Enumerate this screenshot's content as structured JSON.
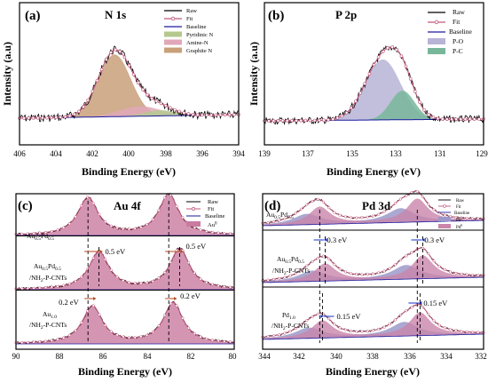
{
  "chart_data": [
    {
      "panel": "(a)",
      "title": "N 1s",
      "type": "line",
      "xlabel": "Binding Energy (eV)",
      "ylabel": "Intensity (a.u)",
      "xlim": [
        406,
        394
      ],
      "xticks": [
        406,
        404,
        402,
        400,
        398,
        396,
        394
      ],
      "legend": [
        "Raw",
        "Fit",
        "Baseline",
        "Pyridinic N",
        "Amine-N",
        "Graphite N"
      ],
      "legend_position": "top-right",
      "components": [
        {
          "name": "Graphite N",
          "center": 400.8,
          "fwhm": 2.1,
          "height": 1.0,
          "color": "#c8a07a"
        },
        {
          "name": "Amine-N",
          "center": 399.4,
          "fwhm": 2.6,
          "height": 0.16,
          "color": "#e0a8b8"
        },
        {
          "name": "Pyridinic N",
          "center": 398.3,
          "fwhm": 2.0,
          "height": 0.09,
          "color": "#b5c98e"
        }
      ],
      "colors": {
        "raw": "#000000",
        "fit": "#c0587a",
        "baseline": "#1a1aa0"
      }
    },
    {
      "panel": "(b)",
      "title": "P 2p",
      "type": "line",
      "xlabel": "Binding Energy (eV)",
      "ylabel": "Intensity (a.u)",
      "xlim": [
        139,
        129
      ],
      "xticks": [
        139,
        137,
        135,
        133,
        131,
        129
      ],
      "legend": [
        "Raw",
        "Fit",
        "Baseline",
        "P-O",
        "P-C"
      ],
      "legend_position": "top-right",
      "components": [
        {
          "name": "P-O",
          "center": 133.6,
          "fwhm": 1.9,
          "height": 1.0,
          "color": "#b7b4d6"
        },
        {
          "name": "P-C",
          "center": 132.7,
          "fwhm": 1.3,
          "height": 0.48,
          "color": "#78b79a"
        }
      ],
      "colors": {
        "raw": "#000000",
        "fit": "#c0587a",
        "baseline": "#1a1aa0"
      }
    },
    {
      "panel": "(c)",
      "title": "Au 4f",
      "type": "line",
      "xlabel": "Binding Energy (eV)",
      "xlim": [
        90,
        80
      ],
      "xticks": [
        90,
        88,
        86,
        84,
        82,
        80
      ],
      "legend": [
        "Raw",
        "Fit",
        "Baseline",
        "Au0"
      ],
      "legend_position": "top-right",
      "samples": [
        {
          "label": "Au0.5Pd0.5",
          "peaks": [
            86.7,
            83.0
          ]
        },
        {
          "label": "Au0.5Pd0.5/NH2-P-CNTs",
          "peaks": [
            86.2,
            82.5
          ],
          "shift": "0.5 eV"
        },
        {
          "label": "Au1.0/NH2-P-CNTs",
          "peaks": [
            86.5,
            82.8
          ],
          "shift": "0.2 eV"
        }
      ],
      "colors": {
        "fill": "#c97aa0",
        "fit": "#c0587a",
        "raw": "#000000",
        "baseline": "#1a1aa0",
        "annotation": "#b5451b"
      }
    },
    {
      "panel": "(d)",
      "title": "Pd 3d",
      "type": "line",
      "xlabel": "Binding Energy (eV)",
      "xlim": [
        344,
        332
      ],
      "xticks": [
        344,
        342,
        340,
        338,
        336,
        334,
        332
      ],
      "legend": [
        "Raw",
        "Fit",
        "Baseline",
        "Pd2+",
        "Pd0"
      ],
      "legend_position": "top-right",
      "samples": [
        {
          "label": "Au0.5Pd0.5",
          "pd0": [
            340.9,
            335.6
          ],
          "pd2": [
            341.6,
            336.5
          ]
        },
        {
          "label": "Au0.5Pd0.5/NH2-P-CNTs",
          "pd0": [
            340.6,
            335.3
          ],
          "pd2": [
            341.3,
            336.2
          ],
          "shift": "0.3 eV"
        },
        {
          "label": "Pd1.0/NH2-P-CNTs",
          "pd0": [
            340.75,
            335.45
          ],
          "pd2": [
            341.5,
            336.3
          ],
          "shift": "0.15 eV"
        }
      ],
      "colors": {
        "pd0": "#c985aa",
        "pd2": "#9c99c9",
        "fit": "#c0587a",
        "raw": "#000000",
        "baseline": "#1a1aa0",
        "annotation": "#1530c8"
      }
    }
  ],
  "text": {
    "a": {
      "label": "(a)",
      "title": "N 1s",
      "xlabel": "Binding Energy (eV)",
      "ylabel": "Intensity (a.u)",
      "ticks": [
        "406",
        "404",
        "402",
        "400",
        "398",
        "396",
        "394"
      ],
      "legend": [
        "Raw",
        "Fit",
        "Baseline",
        "Pyridinic N",
        "Amine-N",
        "Graphite N"
      ]
    },
    "b": {
      "label": "(b)",
      "title": "P 2p",
      "xlabel": "Binding Energy (eV)",
      "ylabel": "Intensity (a.u)",
      "ticks": [
        "139",
        "137",
        "135",
        "133",
        "131",
        "129"
      ],
      "legend": [
        "Raw",
        "Fit",
        "Baseline",
        "P-O",
        "P-C"
      ]
    },
    "c": {
      "label": "(c)",
      "title": "Au 4f",
      "xlabel": "Binding Energy (eV)",
      "ticks": [
        "90",
        "88",
        "86",
        "84",
        "82",
        "80"
      ],
      "legend": [
        "Raw",
        "Fit",
        "Baseline",
        "Au"
      ],
      "legend_sup": "0",
      "s1": {
        "main": "Au",
        "a": "0.5",
        "mid": "Pd",
        "b": "0.5"
      },
      "s2": {
        "main": "Au",
        "a": "0.5",
        "mid": "Pd",
        "b": "0.5",
        "line2": "/NH",
        "c": "2",
        "tail": "-P-CNTs"
      },
      "s3": {
        "main": "Au",
        "a": "1.0",
        "line2": "/NH",
        "c": "2",
        "tail": "-P-CNTs"
      },
      "shift1": "0.5 eV",
      "shift2": "0.2 eV"
    },
    "d": {
      "label": "(d)",
      "title": "Pd 3d",
      "xlabel": "Binding Energy (eV)",
      "ticks": [
        "344",
        "342",
        "340",
        "338",
        "336",
        "334",
        "332"
      ],
      "legend": [
        "Raw",
        "Fit",
        "Baseline",
        "Pd",
        "Pd"
      ],
      "legend_sup": [
        "2+",
        "0"
      ],
      "s1": {
        "main": "Au",
        "a": "0.5",
        "mid": "Pd",
        "b": "0.5"
      },
      "s2": {
        "main": "Au",
        "a": "0.5",
        "mid": "Pd",
        "b": "0.5",
        "line2": "/NH",
        "c": "2",
        "tail": "-P-CNTs"
      },
      "s3": {
        "main": "Pd",
        "a": "1.0",
        "line2": "/NH",
        "c": "2",
        "tail": "-P-CNTs"
      },
      "shift1": "0.3 eV",
      "shift2": "0.15 eV"
    }
  }
}
